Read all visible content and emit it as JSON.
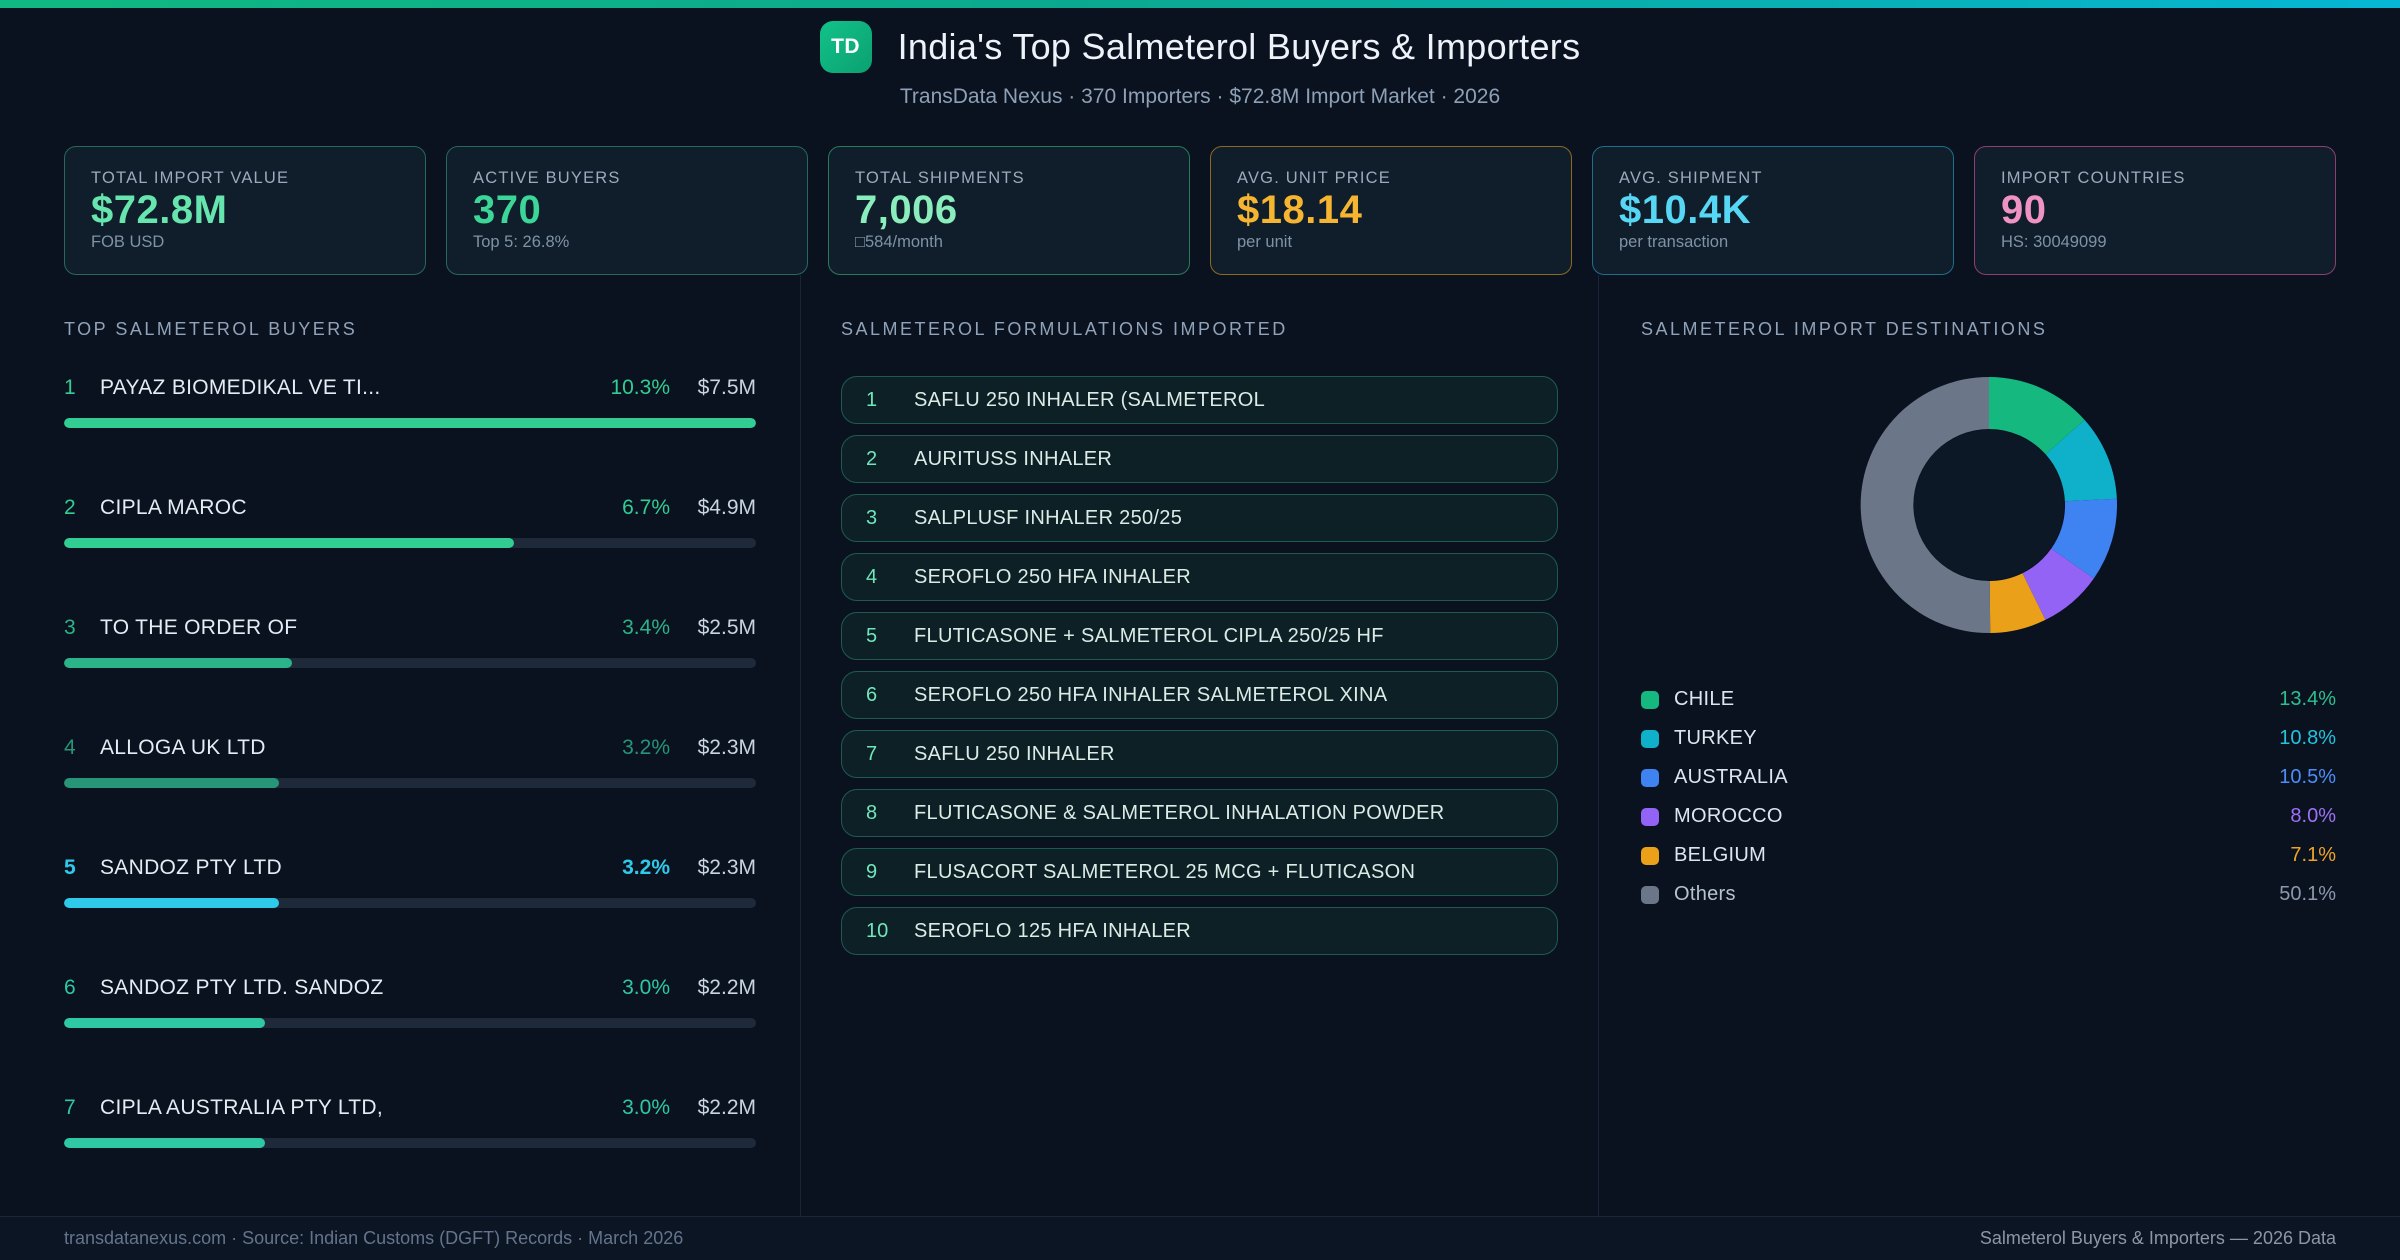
{
  "header": {
    "logo": "TD",
    "title": "India's Top Salmeterol Buyers & Importers",
    "subtitle": "TransData Nexus · 370 Importers · $72.8M Import Market · 2026"
  },
  "stats": {
    "cards": [
      {
        "label": "TOTAL IMPORT VALUE",
        "value": "$72.8M",
        "sub": "FOB USD",
        "accent": "#66e6ae",
        "border": "#26685b"
      },
      {
        "label": "ACTIVE BUYERS",
        "value": "370",
        "sub": "Top 5: 26.8%",
        "accent": "#3bd698",
        "border": "#26685b"
      },
      {
        "label": "TOTAL SHIPMENTS",
        "value": "7,006",
        "sub": "□584/month",
        "accent": "#8aeebc",
        "border": "#2a7a58"
      },
      {
        "label": "AVG. UNIT PRICE",
        "value": "$18.14",
        "sub": "per unit",
        "accent": "#f6b531",
        "border": "#8c6b21"
      },
      {
        "label": "AVG. SHIPMENT",
        "value": "$10.4K",
        "sub": "per transaction",
        "accent": "#56d8f5",
        "border": "#1e6f8c"
      },
      {
        "label": "IMPORT COUNTRIES",
        "value": "90",
        "sub": "HS: 30049099",
        "accent": "#ef93c4",
        "border": "#8c3f70"
      }
    ]
  },
  "buyers": {
    "title": "TOP SALMETEROL BUYERS",
    "rows": [
      {
        "rank": "1",
        "name": "PAYAZ  BIOMEDIKAL VE TI...",
        "pct": "10.3%",
        "value": "$7.5M",
        "share": 10.3,
        "color": "#32cd92",
        "bold": false
      },
      {
        "rank": "2",
        "name": "CIPLA MAROC",
        "pct": "6.7%",
        "value": "$4.9M",
        "share": 6.7,
        "color": "#32cd92",
        "bold": false
      },
      {
        "rank": "3",
        "name": "TO THE ORDER OF",
        "pct": "3.4%",
        "value": "$2.5M",
        "share": 3.4,
        "color": "#2bb389",
        "bold": false
      },
      {
        "rank": "4",
        "name": "ALLOGA UK LTD",
        "pct": "3.2%",
        "value": "$2.3M",
        "share": 3.2,
        "color": "#279578",
        "bold": false
      },
      {
        "rank": "5",
        "name": "SANDOZ PTY LTD",
        "pct": "3.2%",
        "value": "$2.3M",
        "share": 3.2,
        "color": "#2fc9e9",
        "bold": true
      },
      {
        "rank": "6",
        "name": "SANDOZ PTY LTD. SANDOZ",
        "pct": "3.0%",
        "value": "$2.2M",
        "share": 3.0,
        "color": "#2ec9a4",
        "bold": false
      },
      {
        "rank": "7",
        "name": "CIPLA AUSTRALIA PTY LTD,",
        "pct": "3.0%",
        "value": "$2.2M",
        "share": 3.0,
        "color": "#2ec9a4",
        "bold": false
      }
    ]
  },
  "formulations": {
    "title": "SALMETEROL FORMULATIONS IMPORTED",
    "items": [
      "SAFLU 250 INHALER (SALMETEROL",
      "AURITUSS INHALER",
      "SALPLUSF INHALER 250/25",
      "SEROFLO 250 HFA INHALER",
      "FLUTICASONE + SALMETEROL CIPLA 250/25 HF",
      "SEROFLO 250 HFA INHALER SALMETEROL XINA",
      "SAFLU 250 INHALER",
      "FLUTICASONE & SALMETEROL INHALATION POWDER",
      "FLUSACORT SALMETEROL 25 MCG + FLUTICASON",
      "SEROFLO 125 HFA INHALER"
    ]
  },
  "destinations": {
    "title": "SALMETEROL IMPORT DESTINATIONS"
  },
  "chart_data": [
    {
      "type": "bar",
      "orientation": "horizontal",
      "title": "TOP SALMETEROL BUYERS",
      "categories": [
        "PAYAZ  BIOMEDIKAL VE TI...",
        "CIPLA MAROC",
        "TO THE ORDER OF",
        "ALLOGA UK LTD",
        "SANDOZ PTY LTD",
        "SANDOZ PTY LTD. SANDOZ",
        "CIPLA AUSTRALIA PTY LTD,"
      ],
      "values": [
        10.3,
        6.7,
        3.4,
        3.2,
        3.2,
        3.0,
        3.0
      ],
      "value_labels": [
        "$7.5M",
        "$4.9M",
        "$2.5M",
        "$2.3M",
        "$2.3M",
        "$2.2M",
        "$2.2M"
      ],
      "unit": "% share of import value",
      "xlim": [
        0,
        10.3
      ]
    },
    {
      "type": "pie",
      "donut": true,
      "title": "SALMETEROL IMPORT DESTINATIONS",
      "categories": [
        "CHILE",
        "TURKEY",
        "AUSTRALIA",
        "MOROCCO",
        "BELGIUM",
        "Others"
      ],
      "values": [
        13.4,
        10.8,
        10.5,
        8.0,
        7.1,
        50.1
      ],
      "labels": [
        "13.4%",
        "10.8%",
        "10.5%",
        "8.0%",
        "7.1%",
        "50.1%"
      ],
      "colors": [
        "#15b87f",
        "#0fb0ca",
        "#3f82f2",
        "#9263f4",
        "#eaa019",
        "#6b7789"
      ],
      "value_colors": [
        "#2fbf8f",
        "#22c3dd",
        "#4d8df7",
        "#9d71f7",
        "#f0a426",
        "#8b99ab"
      ],
      "legend_position": "bottom",
      "start_angle_deg": -90,
      "direction": "clockwise"
    }
  ],
  "footer": {
    "left": "transdatanexus.com · Source: Indian Customs (DGFT) Records · March 2026",
    "right": "Salmeterol Buyers & Importers — 2026 Data"
  }
}
